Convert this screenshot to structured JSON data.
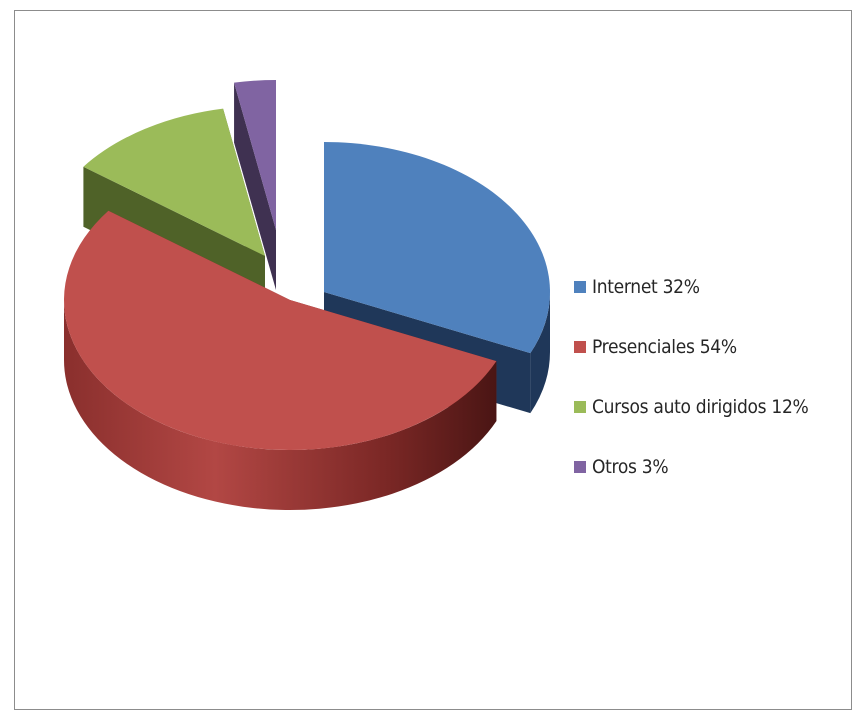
{
  "chart_data": {
    "type": "pie",
    "title": "",
    "legend_position": "right",
    "slices": [
      {
        "label": "Internet 32%",
        "value": 32,
        "color": "#4f81bd"
      },
      {
        "label": "Presenciales 54%",
        "value": 54,
        "color": "#c0504d"
      },
      {
        "label": "Cursos auto dirigidos 12%",
        "value": 12,
        "color": "#9bbb59"
      },
      {
        "label": "Otros 3%",
        "value": 3,
        "color": "#8064a2"
      }
    ]
  }
}
